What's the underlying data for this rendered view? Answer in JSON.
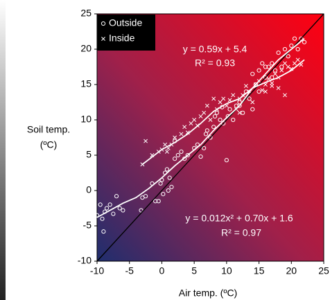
{
  "chart_data": {
    "type": "scatter",
    "x_label": "Air temp. (ºC)",
    "y_label": [
      "Soil temp.",
      "(ºC)"
    ],
    "xlim": [
      -10,
      25
    ],
    "xticks": [
      -10,
      -5,
      0,
      5,
      10,
      15,
      20,
      25
    ],
    "ylim": [
      -10,
      25
    ],
    "yticks": [
      -10,
      -5,
      0,
      5,
      10,
      15,
      20,
      25
    ],
    "legend": "upper left",
    "series": [
      {
        "name": "Outside",
        "marker": "circle",
        "color": "#ffffff",
        "x": [
          -10,
          -9.5,
          -9.2,
          -9,
          -8.8,
          -8.5,
          -8,
          -7.5,
          -7,
          -6.5,
          -6,
          -3,
          -2.5,
          -3.2,
          -1.5,
          -1,
          -0.5,
          -0.2,
          0,
          0.2,
          0.5,
          0.8,
          1,
          1.2,
          1.5,
          2,
          2,
          2.5,
          3,
          3.5,
          4,
          5,
          5.5,
          6,
          6.5,
          6.8,
          7,
          7.5,
          8,
          8.2,
          8.5,
          9,
          9.3,
          9.5,
          10,
          10.2,
          10.5,
          11,
          11.5,
          12,
          12.5,
          13,
          13.5,
          14,
          14.5,
          15,
          15.5,
          16,
          16.5,
          17,
          17.5,
          18,
          18.5,
          19,
          19.5,
          20,
          20.5,
          21,
          21.5,
          22,
          17,
          16,
          15,
          12,
          14
        ],
        "values": [
          -3.5,
          -2,
          -4,
          -5.8,
          -3,
          -2.5,
          -2,
          -3.3,
          -0.8,
          -2.5,
          -2.8,
          -1,
          -0.8,
          -2.8,
          1,
          -1.5,
          -1.5,
          1,
          1.5,
          -0.5,
          2.5,
          3,
          0,
          1.8,
          0.5,
          4.5,
          7,
          5,
          5.5,
          4.5,
          5,
          6,
          6.5,
          4.8,
          6,
          8,
          8.5,
          7.5,
          9,
          10.5,
          11,
          10,
          11.8,
          9.5,
          4.3,
          10.5,
          11.5,
          10,
          12,
          12.5,
          11,
          14,
          13,
          16.5,
          15,
          17,
          18,
          16,
          17.5,
          18,
          17,
          19.5,
          17.5,
          20,
          19,
          20.5,
          21.5,
          20,
          21.5,
          21,
          16,
          17.5,
          14,
          12,
          11.5
        ]
      },
      {
        "name": "Inside",
        "marker": "x",
        "color": "#ffffff",
        "x": [
          -3,
          -2.5,
          -1.5,
          -0.5,
          0,
          0.5,
          0.8,
          1,
          1.5,
          2,
          3,
          3.5,
          4,
          4.5,
          5,
          5.5,
          6,
          6.5,
          7,
          7.5,
          8,
          8.5,
          9,
          9.5,
          10,
          10.5,
          11,
          11.5,
          12,
          12.5,
          13,
          13.5,
          14,
          14.5,
          15,
          15.5,
          16,
          16.5,
          17,
          17.5,
          18,
          18.5,
          19,
          19.5,
          20,
          20.5,
          21,
          21.5,
          18,
          19,
          17,
          16,
          12
        ],
        "values": [
          3.7,
          7,
          5,
          5.5,
          5.8,
          6.5,
          5.5,
          6,
          6.5,
          7.5,
          8,
          9,
          8.2,
          9.5,
          10,
          9.2,
          10.5,
          11,
          12,
          10,
          13,
          11.5,
          12.5,
          13,
          12,
          12.8,
          13.5,
          11.5,
          13,
          13.5,
          14.8,
          14,
          12.5,
          15,
          15.5,
          14.2,
          15,
          15.8,
          15.2,
          16.5,
          16,
          17,
          18,
          17.5,
          17.2,
          18,
          18.5,
          17.8,
          14.5,
          13.5,
          14.8,
          14,
          11
        ]
      }
    ],
    "trend_lines": [
      {
        "color": "#ffffff",
        "x": [
          -10,
          -8,
          -6,
          -4,
          -2,
          0,
          2,
          4,
          6,
          8,
          10,
          12,
          14,
          16,
          18,
          20,
          22
        ],
        "values": [
          -3.8,
          -2.8,
          -1.8,
          -1,
          0.3,
          1.8,
          3.5,
          5,
          6.5,
          8.5,
          10.3,
          12,
          14.5,
          16.5,
          18.5,
          20,
          21.5
        ]
      },
      {
        "color": "#ffffff",
        "x": [
          -3,
          0,
          2,
          4,
          6,
          8,
          10,
          12,
          14,
          16,
          18,
          20,
          22
        ],
        "values": [
          3.7,
          5.8,
          6.8,
          8,
          9.5,
          11.2,
          12.3,
          13,
          14.5,
          15.3,
          16,
          17,
          18.5
        ]
      }
    ],
    "reference_line": {
      "color": "#000000",
      "x": [
        -10,
        25
      ],
      "values": [
        -10,
        25
      ]
    },
    "annotations": [
      "y = 0.59x + 5.4",
      "R² = 0.93",
      "y = 0.012x² + 0.70x + 1.6",
      "R² = 0.97"
    ]
  }
}
